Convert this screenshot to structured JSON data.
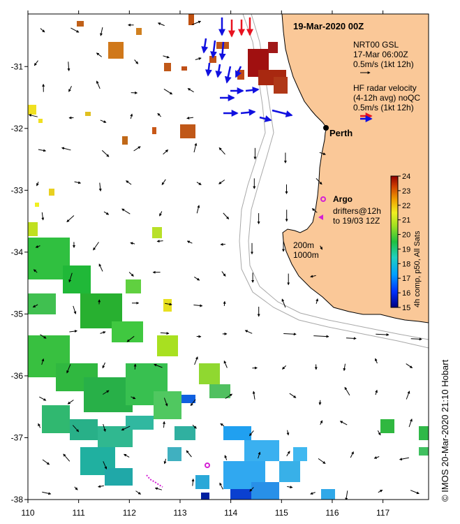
{
  "map": {
    "title": "19-Mar-2020 00Z",
    "city_label": "Perth",
    "x_ticks": [
      "110",
      "111",
      "112",
      "113",
      "114",
      "115",
      "116",
      "117"
    ],
    "y_ticks": [
      "-31",
      "-32",
      "-33",
      "-34",
      "-35",
      "-36",
      "-37",
      "-38"
    ],
    "lon_range": [
      110,
      117.9
    ],
    "lat_range": [
      -38,
      -30.15
    ],
    "colors": {
      "land": "#fac898",
      "ocean": "#ffffff",
      "radar_onshore": "#e8121f",
      "radar_offshore": "#1010e0",
      "argo": "#d420d4",
      "isobath": "#a8a8a8"
    }
  },
  "legend": {
    "nrt_line1": "NRT00 GSL",
    "nrt_line2": "17-Mar 06:00Z",
    "nrt_line3": "0.5m/s (1kt 12h)",
    "hf_line1": "HF radar velocity",
    "hf_line2": "(4-12h avg) noQC",
    "hf_line3": "0.5m/s (1kt 12h)",
    "argo_label": "Argo",
    "drifters_line1": "drifters@12h",
    "drifters_line2": "to 19/03 12Z",
    "depth_200": "200m",
    "depth_1000": "1000m"
  },
  "colorbar": {
    "ticks": [
      "15",
      "16",
      "17",
      "18",
      "19",
      "20",
      "21",
      "22",
      "23",
      "24"
    ],
    "range": [
      15,
      24
    ],
    "label": "4h comp, p50, All Sats"
  },
  "credit": "© IMOS 20-Mar-2020 21:10 Hobart"
}
